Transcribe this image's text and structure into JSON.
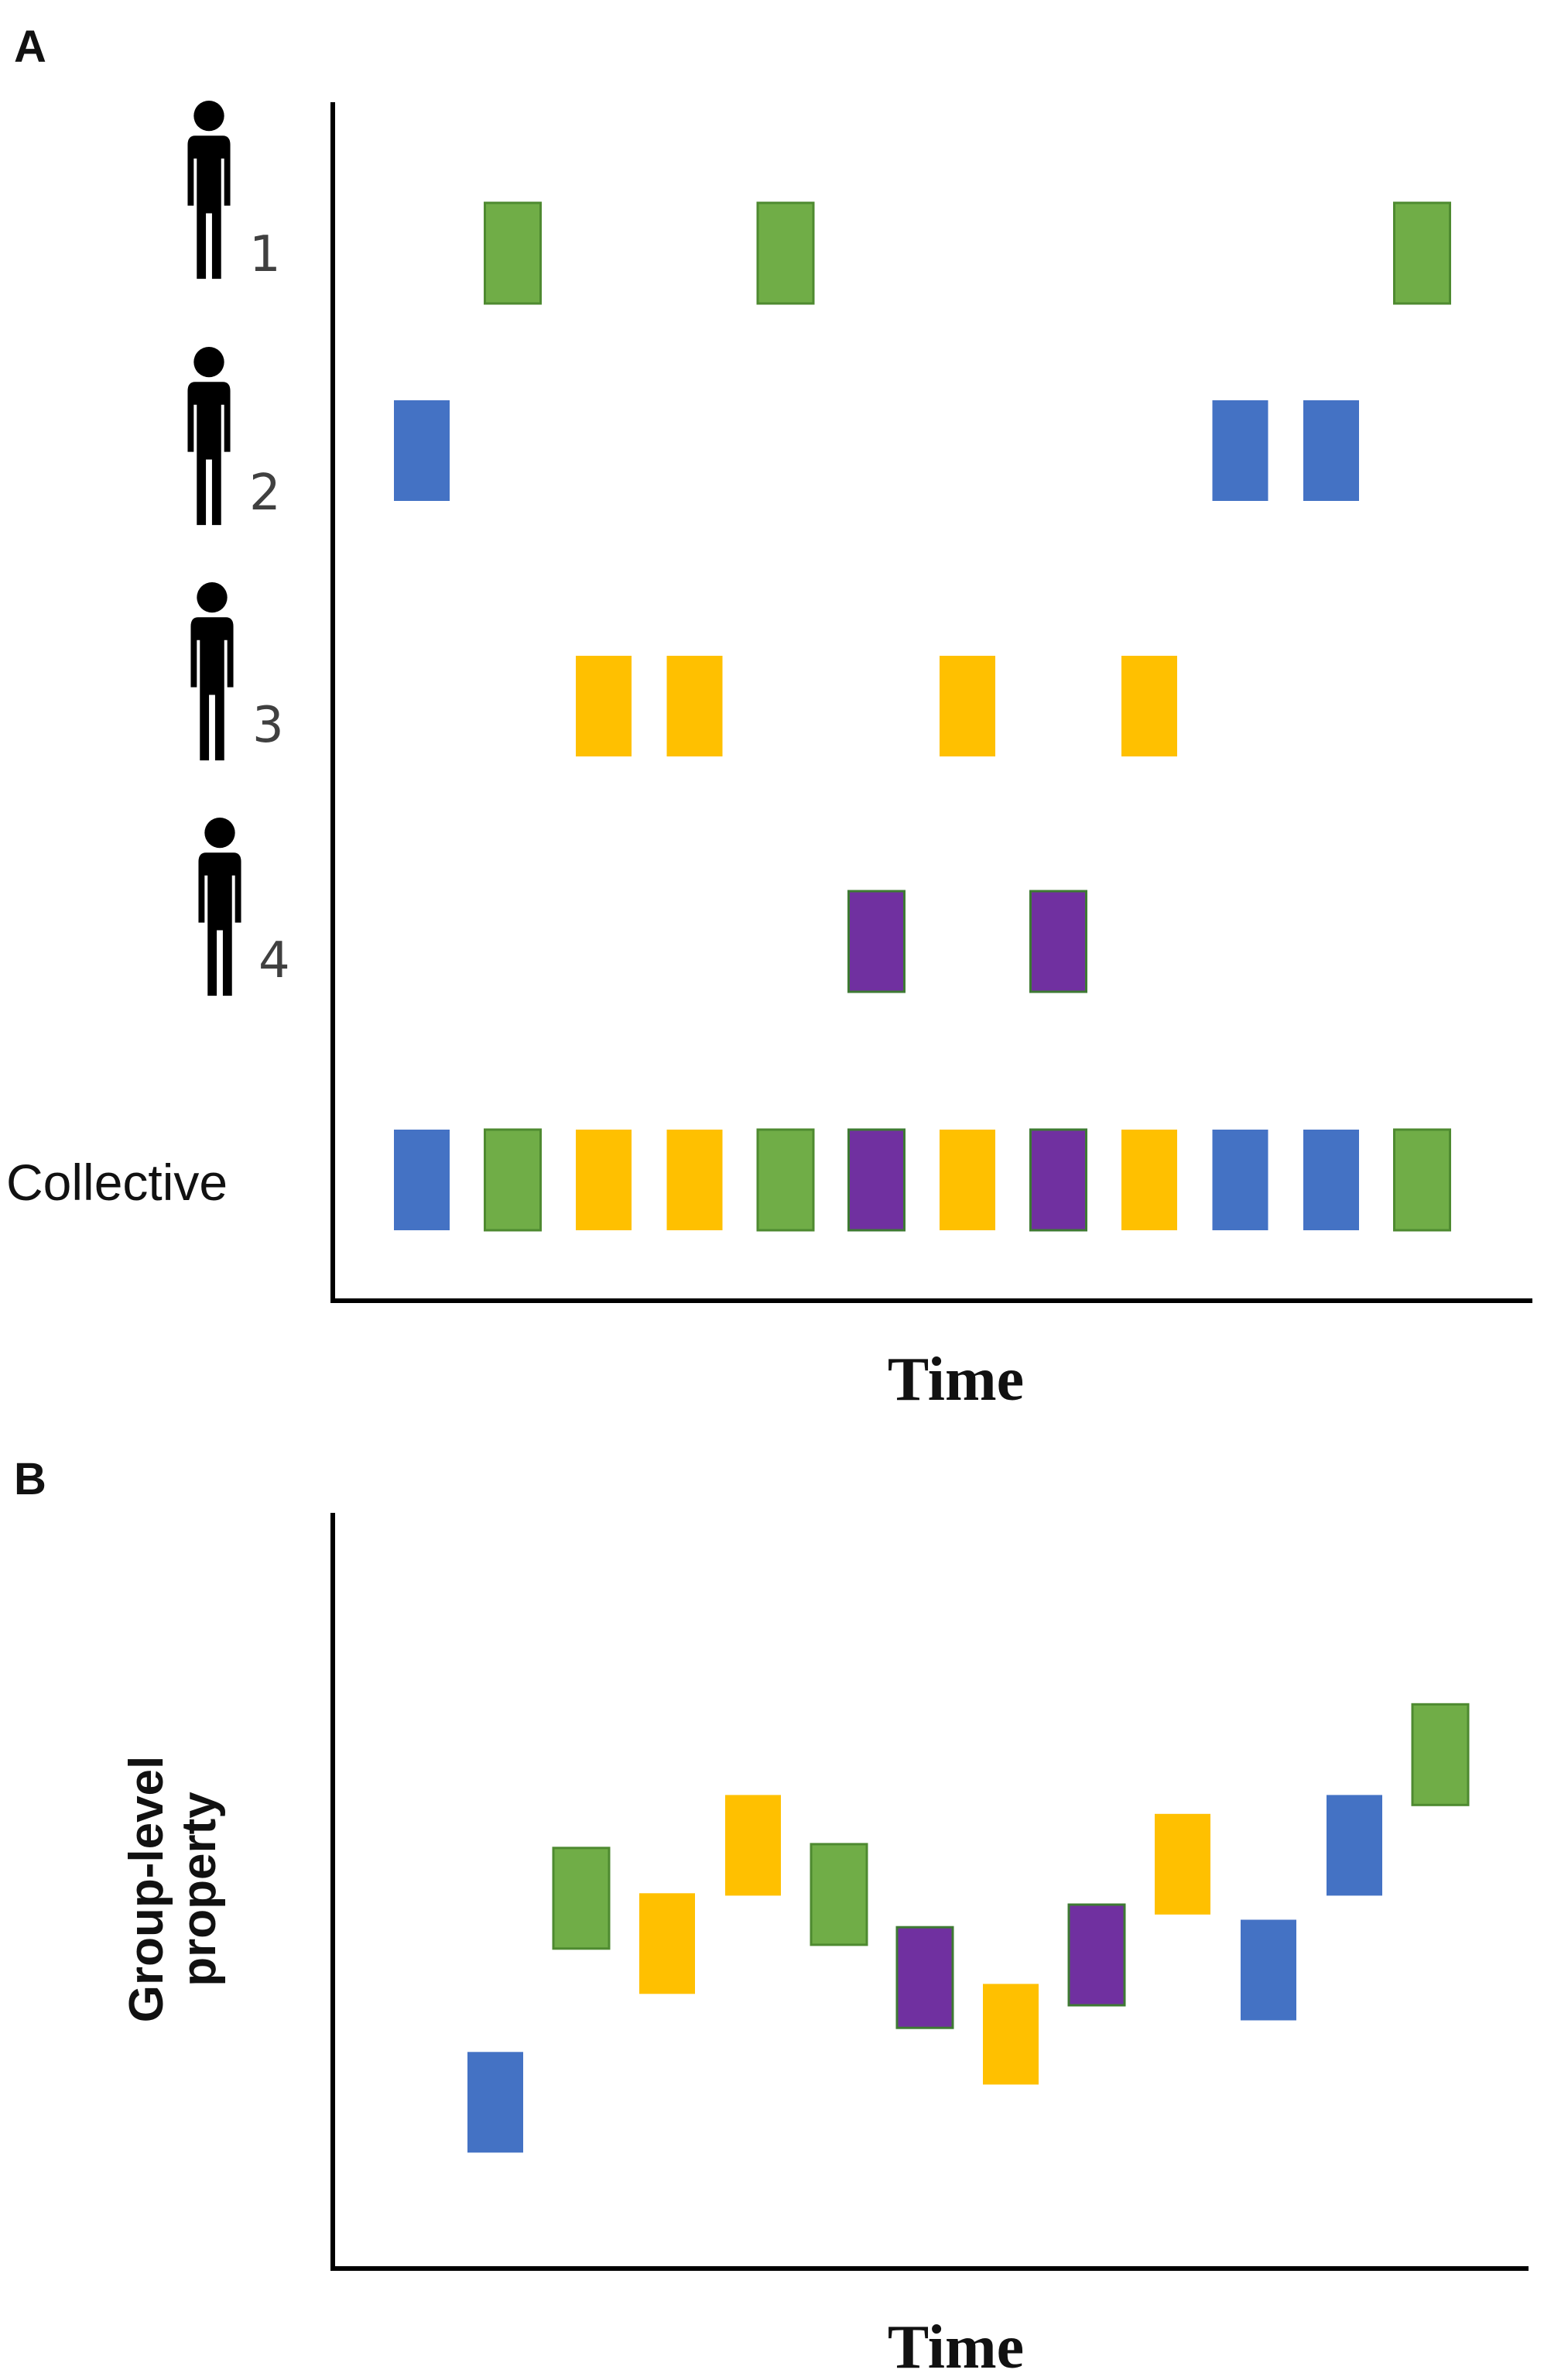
{
  "colors": {
    "green": "#70ad47",
    "blue": "#4472c4",
    "yellow": "#ffc000",
    "purple": "#7030a0"
  },
  "panel_a": {
    "letter": "A",
    "xlabel": "Time",
    "collective_label": "Collective",
    "people": [
      {
        "id": "1",
        "label": "1",
        "color": "green",
        "event_times": [
          2,
          5,
          12
        ]
      },
      {
        "id": "2",
        "label": "2",
        "color": "blue",
        "event_times": [
          1,
          10,
          11
        ]
      },
      {
        "id": "3",
        "label": "3",
        "color": "yellow",
        "event_times": [
          3,
          4,
          7,
          9
        ]
      },
      {
        "id": "4",
        "label": "4",
        "color": "purple",
        "event_times": [
          6,
          8
        ]
      }
    ],
    "collective_sequence": [
      "blue",
      "green",
      "yellow",
      "yellow",
      "green",
      "purple",
      "yellow",
      "purple",
      "yellow",
      "blue",
      "blue",
      "green"
    ]
  },
  "panel_b": {
    "letter": "B",
    "xlabel": "Time",
    "ylabel_line1": "Group-level",
    "ylabel_line2": "property",
    "series": [
      {
        "t": 1,
        "color": "blue",
        "value": 2.2
      },
      {
        "t": 2,
        "color": "green",
        "value": 4.9
      },
      {
        "t": 3,
        "color": "yellow",
        "value": 4.3
      },
      {
        "t": 4,
        "color": "yellow",
        "value": 5.6
      },
      {
        "t": 5,
        "color": "green",
        "value": 4.95
      },
      {
        "t": 6,
        "color": "purple",
        "value": 3.85
      },
      {
        "t": 7,
        "color": "yellow",
        "value": 3.1
      },
      {
        "t": 8,
        "color": "purple",
        "value": 4.15
      },
      {
        "t": 9,
        "color": "yellow",
        "value": 5.35
      },
      {
        "t": 10,
        "color": "blue",
        "value": 3.95
      },
      {
        "t": 11,
        "color": "blue",
        "value": 5.6
      },
      {
        "t": 12,
        "color": "green",
        "value": 6.8
      }
    ],
    "ylim": [
      0,
      10
    ]
  },
  "chart_data": [
    {
      "type": "scatter",
      "title": "A",
      "xlabel": "Time",
      "ylabel": "",
      "rows": [
        "1",
        "2",
        "3",
        "4",
        "Collective"
      ],
      "series": [
        {
          "name": "1",
          "color": "green",
          "x": [
            2,
            5,
            12
          ]
        },
        {
          "name": "2",
          "color": "blue",
          "x": [
            1,
            10,
            11
          ]
        },
        {
          "name": "3",
          "color": "yellow",
          "x": [
            3,
            4,
            7,
            9
          ]
        },
        {
          "name": "4",
          "color": "purple",
          "x": [
            6,
            8
          ]
        },
        {
          "name": "Collective",
          "x": [
            1,
            2,
            3,
            4,
            5,
            6,
            7,
            8,
            9,
            10,
            11,
            12
          ],
          "colors": [
            "blue",
            "green",
            "yellow",
            "yellow",
            "green",
            "purple",
            "yellow",
            "purple",
            "yellow",
            "blue",
            "blue",
            "green"
          ]
        }
      ]
    },
    {
      "type": "scatter",
      "title": "B",
      "xlabel": "Time",
      "ylabel": "Group-level property",
      "x": [
        1,
        2,
        3,
        4,
        5,
        6,
        7,
        8,
        9,
        10,
        11,
        12
      ],
      "y": [
        2.2,
        4.9,
        4.3,
        5.6,
        4.95,
        3.85,
        3.1,
        4.15,
        5.35,
        3.95,
        5.6,
        6.8
      ],
      "colors": [
        "blue",
        "green",
        "yellow",
        "yellow",
        "green",
        "purple",
        "yellow",
        "purple",
        "yellow",
        "blue",
        "blue",
        "green"
      ],
      "ylim": [
        0,
        10
      ]
    }
  ]
}
